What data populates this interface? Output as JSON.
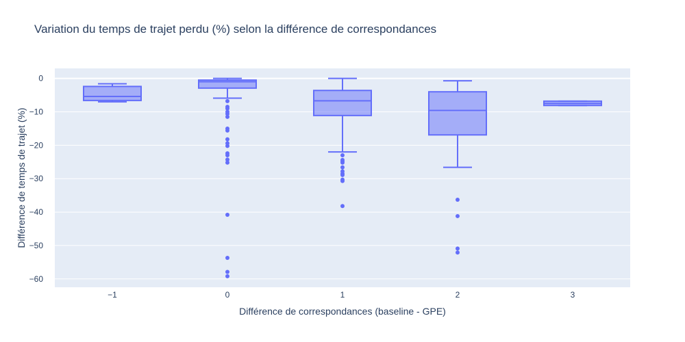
{
  "chart_data": {
    "type": "box",
    "title": "Variation du temps de trajet perdu (%) selon la différence de correspondances",
    "xlabel": "Différence de correspondances (baseline - GPE)",
    "ylabel": "Différence de temps de trajet (%)",
    "categories": [
      "−1",
      "0",
      "1",
      "2",
      "3"
    ],
    "x_values": [
      -1,
      0,
      1,
      2,
      3
    ],
    "y_ticks": [
      0,
      -10,
      -20,
      -30,
      -40,
      -50,
      -60
    ],
    "y_tick_labels": [
      "0",
      "−10",
      "−20",
      "−30",
      "−40",
      "−50",
      "−60"
    ],
    "ylim": [
      -62.5,
      3
    ],
    "xlim": [
      -1.5,
      3.5
    ],
    "grid": true,
    "legend": "none",
    "colors": {
      "fill": "rgba(99,110,250,0.5)",
      "line": "#636efa",
      "plot_bg": "#e5ecf6",
      "grid": "#ffffff",
      "text": "#2a3f5f"
    },
    "boxes": [
      {
        "x": -1,
        "lower_whisker": -7.0,
        "q1": -6.6,
        "median": -5.4,
        "q3": -2.4,
        "upper_whisker": -1.6,
        "outliers": []
      },
      {
        "x": 0,
        "lower_whisker": -5.9,
        "q1": -2.9,
        "median": -1.0,
        "q3": -0.5,
        "upper_whisker": 0.0,
        "outliers": [
          -6.8,
          -8.5,
          -9.0,
          -10.0,
          -10.6,
          -11.5,
          -15.0,
          -15.6,
          -18.2,
          -19.4,
          -20.2,
          -22.4,
          -23.0,
          -24.3,
          -25.2,
          -40.8,
          -53.7,
          -57.9,
          -59.2
        ]
      },
      {
        "x": 1,
        "lower_whisker": -22.0,
        "q1": -11.1,
        "median": -6.7,
        "q3": -3.6,
        "upper_whisker": 0.0,
        "outliers": [
          -23.0,
          -24.4,
          -24.8,
          -25.2,
          -26.6,
          -27.8,
          -28.5,
          -28.9,
          -30.3,
          -30.7,
          -38.2
        ]
      },
      {
        "x": 2,
        "lower_whisker": -26.6,
        "q1": -16.9,
        "median": -9.6,
        "q3": -4.0,
        "upper_whisker": -0.7,
        "outliers": [
          -36.3,
          -41.2,
          -50.9,
          -52.1
        ]
      },
      {
        "x": 3,
        "lower_whisker": -8.1,
        "q1": -8.1,
        "median": -7.5,
        "q3": -6.8,
        "upper_whisker": -6.8,
        "outliers": []
      }
    ]
  }
}
